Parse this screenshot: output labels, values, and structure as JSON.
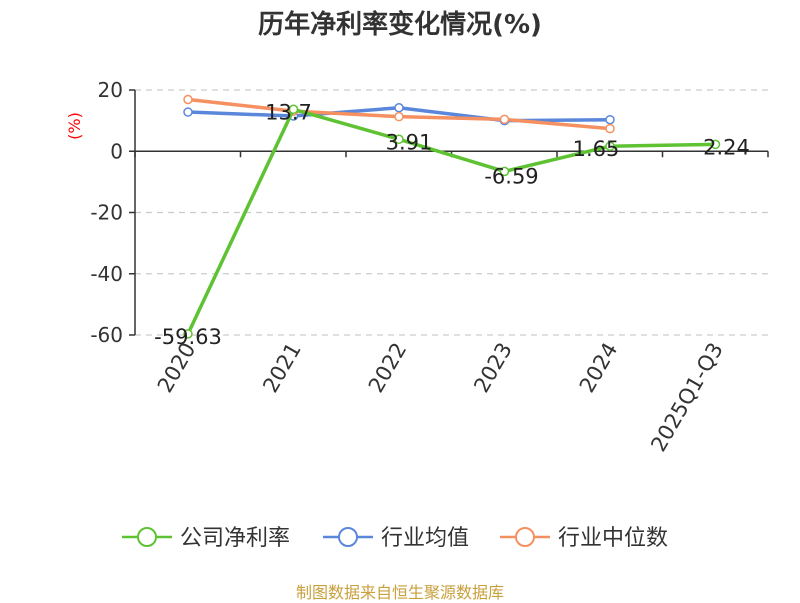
{
  "title": "历年净利率变化情况(%)",
  "source": "制图数据来自恒生聚源数据库",
  "colors": {
    "company": "#5ec232",
    "industry_avg": "#5a87dc",
    "industry_median": "#f59060",
    "unit_label": "#ff0000",
    "axis": "#333333",
    "grid": "#cccccc",
    "text": "#333333",
    "source": "#c8a03c"
  },
  "chart_data": {
    "type": "line",
    "title": "历年净利率变化情况(%)",
    "ylabel": "(%)",
    "xlabel": "",
    "categories": [
      "2020",
      "2021",
      "2022",
      "2023",
      "2024",
      "2025Q1-Q3"
    ],
    "ylim": [
      -60,
      20
    ],
    "yticks": [
      20,
      0,
      -20,
      -40,
      -60
    ],
    "ytick_labels": [
      "20",
      "0",
      "-20",
      "-40",
      "-60"
    ],
    "grid": true,
    "legend_position": "bottom",
    "series": [
      {
        "name": "公司净利率",
        "key": "company",
        "values": [
          -59.63,
          13.7,
          3.91,
          -6.59,
          1.65,
          2.24
        ],
        "data_labels": [
          "-59.63",
          "13.7",
          "3.91",
          "-6.59",
          "1.65",
          "2.24"
        ]
      },
      {
        "name": "行业均值",
        "key": "industry_avg",
        "values": [
          12.8,
          11.5,
          14.2,
          10.0,
          10.3,
          null
        ]
      },
      {
        "name": "行业中位数",
        "key": "industry_median",
        "values": [
          16.9,
          13.1,
          11.3,
          10.4,
          7.4,
          null
        ]
      }
    ]
  }
}
